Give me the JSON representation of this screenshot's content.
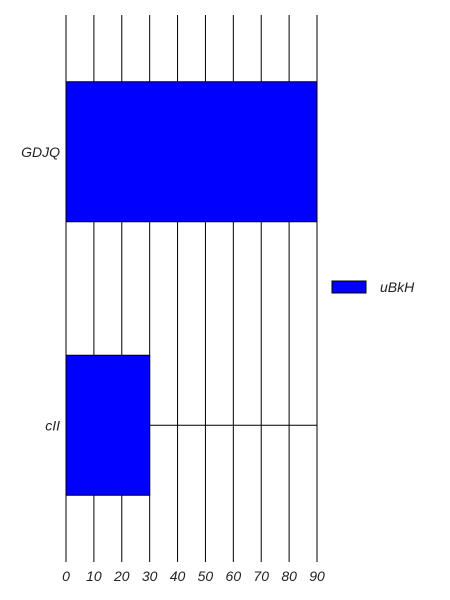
{
  "chart_data": {
    "type": "bar",
    "orientation": "horizontal",
    "categories": [
      "GDJQ",
      "cII"
    ],
    "series": [
      {
        "name": "uBkH",
        "values": [
          90,
          30
        ],
        "color": "#0000ff"
      }
    ],
    "x_ticks": [
      0,
      10,
      20,
      30,
      40,
      50,
      60,
      70,
      80,
      90
    ],
    "xlim": [
      0,
      90
    ],
    "title": "",
    "xlabel": "",
    "ylabel": "",
    "grid": "vertical",
    "legend": "right"
  }
}
